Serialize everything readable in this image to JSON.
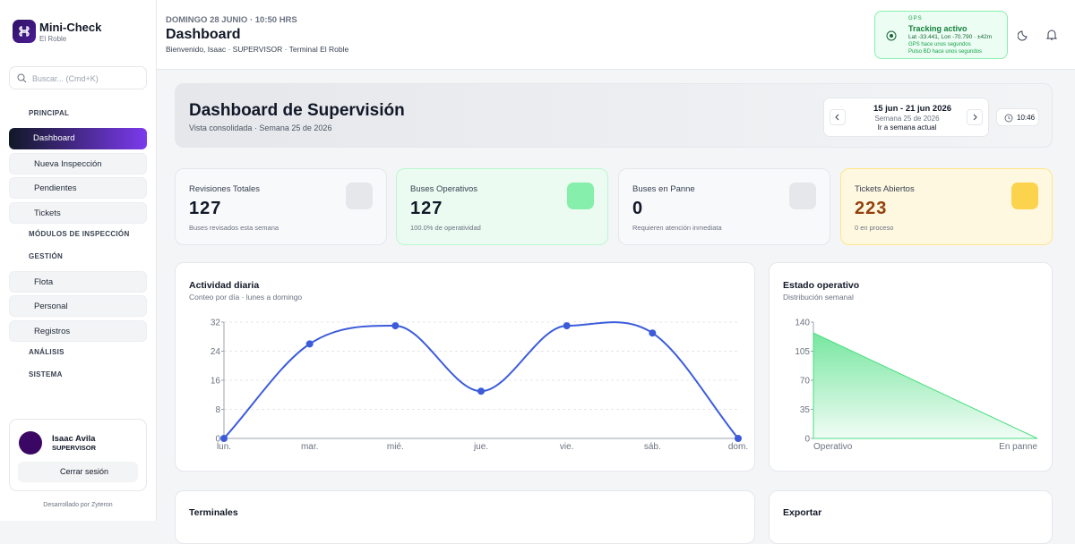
{
  "sidebar": {
    "brand": "Mini-Check",
    "location": "El Roble",
    "search": "Buscar... (Cmd+K)",
    "nav": [
      {
        "label": "PRINCIPAL",
        "items": [
          "Dashboard",
          "Nueva Inspección",
          "Pendientes",
          "Tickets"
        ]
      },
      {
        "label": "MÓDULOS DE INSPECCIÓN"
      },
      {
        "label": "GESTIÓN",
        "items": [
          "Flota",
          "Personal",
          "Registros"
        ]
      },
      {
        "label": "ANÁLISIS"
      },
      {
        "label": "SISTEMA"
      }
    ],
    "user": {
      "name": "Isaac Avila",
      "role": "SUPERVISOR",
      "logout": "Cerrar sesión"
    },
    "footer": "Desarrollado por Zyteron"
  },
  "header": {
    "date": "DOMINGO 28 JUNIO · 10:50 HRS",
    "title": "Dashboard",
    "welcome": "Bienvenido, Isaac · SUPERVISOR · Terminal El Roble",
    "gps": {
      "label": "GPS",
      "status": "Tracking activo",
      "coords": "Lat -33.441, Lon -70.790 · ±42m",
      "gps_seen": "GPS hace unos segundos",
      "db_seen": "Pulso BD hace unos segundos"
    }
  },
  "banner": {
    "title": "Dashboard de Supervisión",
    "subtitle": "Vista consolidada · Semana 25 de 2026",
    "range": "15 jun - 21 jun 2026",
    "week": "Semana 25 de 2026",
    "current": "Ir a semana actual",
    "time": "10:46"
  },
  "stats": [
    {
      "label": "Revisiones Totales",
      "value": 127,
      "note": "Buses revisados esta semana"
    },
    {
      "label": "Buses Operativos",
      "value": 127,
      "note": "100.0% de operatividad"
    },
    {
      "label": "Buses en Panne",
      "value": 0,
      "note": "Requieren atención inmediata"
    },
    {
      "label": "Tickets Abiertos",
      "value": 223,
      "note": "0 en proceso"
    }
  ],
  "chart_data": [
    {
      "type": "line",
      "title": "Actividad diaria",
      "subtitle": "Conteo por día · lunes a domingo",
      "categories": [
        "lun.",
        "mar.",
        "mié.",
        "jue.",
        "vie.",
        "sáb.",
        "dom."
      ],
      "values": [
        0,
        26,
        31,
        13,
        31,
        29,
        0
      ],
      "color": "#3b5bdb",
      "ylim": [
        0,
        32
      ],
      "yticks": [
        0,
        8,
        16,
        24,
        32
      ],
      "grid": true
    },
    {
      "type": "area",
      "title": "Estado operativo",
      "subtitle": "Distribución semanal",
      "categories": [
        "Operativo",
        "En panne"
      ],
      "values": [
        127,
        0
      ],
      "color": "#4ade80",
      "ylim": [
        0,
        140
      ],
      "yticks": [
        0,
        35,
        70,
        105,
        140
      ],
      "grid": false
    }
  ],
  "sections": {
    "terminals": "Terminales",
    "export": "Exportar"
  }
}
